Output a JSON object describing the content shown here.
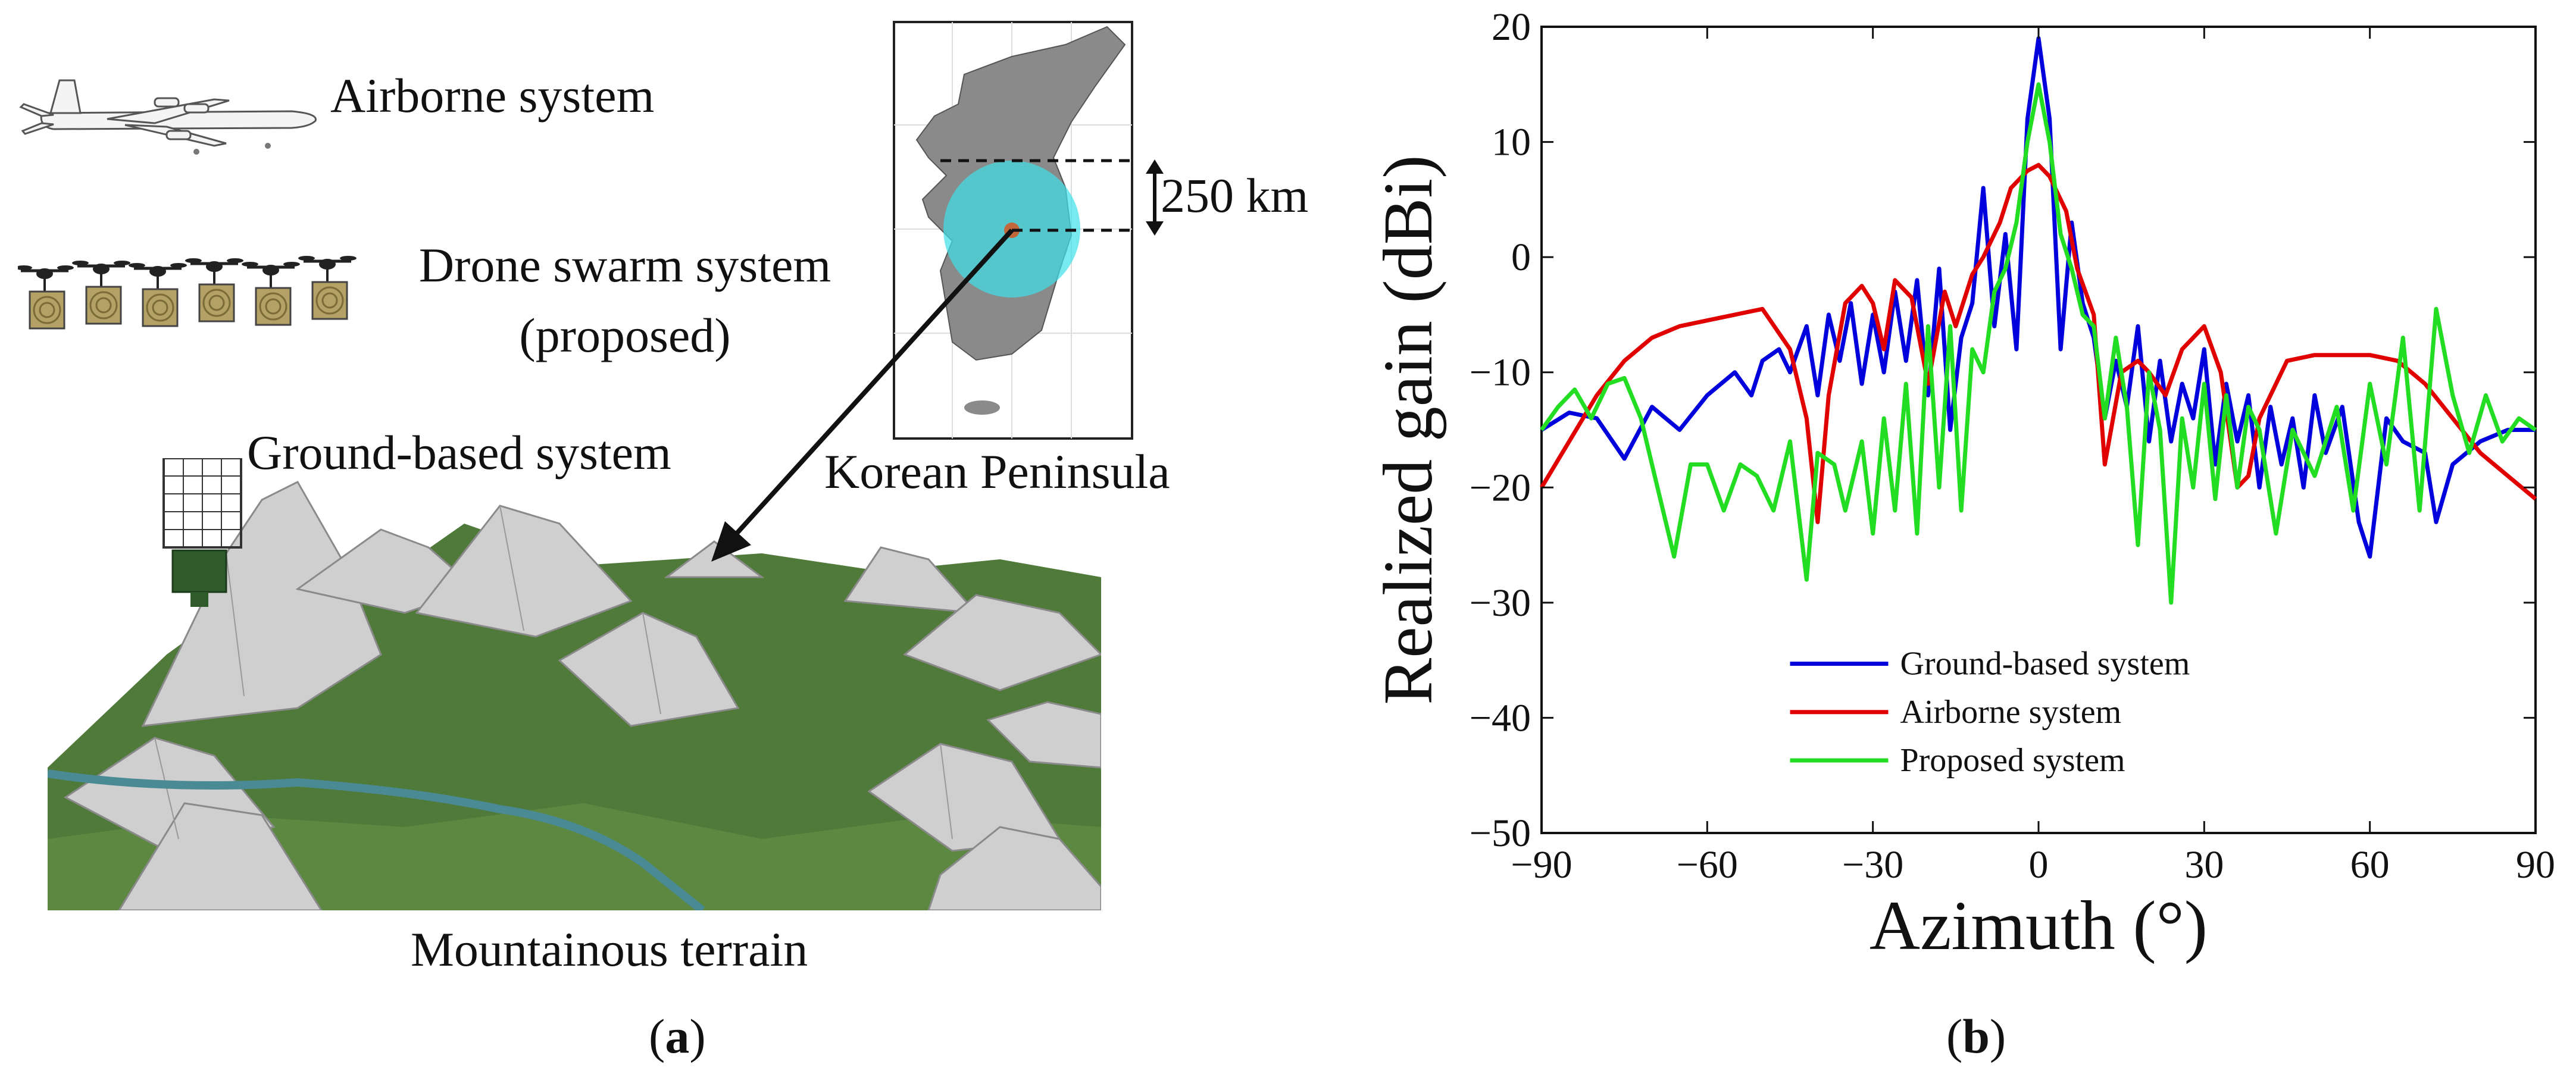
{
  "panel_a": {
    "labels": {
      "airborne": "Airborne system",
      "drone_line1": "Drone swarm system",
      "drone_line2": "(proposed)",
      "ground": "Ground-based system",
      "korea": "Korean Peninsula",
      "distance": "250 km",
      "terrain": "Mountainous terrain"
    },
    "caption": {
      "open": "(",
      "letter": "a",
      "close": ")"
    },
    "colors": {
      "grass": "#4f7a3a",
      "rock": "#c9c9c9",
      "coverage": "#3fe0e8",
      "center_dot": "#c2673a",
      "drone_panel": "#b3a165"
    }
  },
  "panel_b": {
    "caption": {
      "open": "(",
      "letter": "b",
      "close": ")"
    },
    "chart_data": {
      "type": "line",
      "xlabel": "Azimuth (°)",
      "ylabel": "Realized gain (dBi)",
      "xlim": [
        -90,
        90
      ],
      "ylim": [
        -50,
        20
      ],
      "xticks": [
        -90,
        -60,
        -30,
        0,
        30,
        60,
        90
      ],
      "yticks": [
        -50,
        -40,
        -30,
        -20,
        -10,
        0,
        10,
        20
      ],
      "xtick_labels": [
        "−90",
        "−60",
        "−30",
        "0",
        "30",
        "60",
        "90"
      ],
      "ytick_labels": [
        "−50",
        "−40",
        "−30",
        "−20",
        "−10",
        "0",
        "10",
        "20"
      ],
      "grid": false,
      "legend_placement": "lower-center",
      "series": [
        {
          "name": "Ground-based system",
          "color": "#0000dd",
          "x": [
            -90,
            -85,
            -80,
            -75,
            -70,
            -65,
            -60,
            -55,
            -52,
            -50,
            -47,
            -45,
            -42,
            -40,
            -38,
            -36,
            -34,
            -32,
            -30,
            -28,
            -26,
            -24,
            -22,
            -20,
            -18,
            -16,
            -14,
            -12,
            -10,
            -8,
            -6,
            -4,
            -2,
            0,
            2,
            4,
            6,
            8,
            10,
            12,
            14,
            16,
            18,
            20,
            22,
            24,
            26,
            28,
            30,
            32,
            34,
            36,
            38,
            40,
            42,
            44,
            46,
            48,
            50,
            52,
            55,
            58,
            60,
            63,
            66,
            70,
            72,
            75,
            80,
            85,
            90
          ],
          "y": [
            -15,
            -13.5,
            -14,
            -17.5,
            -13,
            -15,
            -12,
            -10,
            -12,
            -9,
            -8,
            -10,
            -6,
            -12,
            -5,
            -9,
            -4,
            -11,
            -5,
            -10,
            -3,
            -9,
            -2,
            -12,
            -1,
            -15,
            -7,
            -4,
            6,
            -6,
            2,
            -8,
            12,
            19,
            12,
            -8,
            3,
            -4,
            -7,
            -14,
            -9,
            -13,
            -6,
            -16,
            -9,
            -16,
            -11,
            -14,
            -8,
            -18,
            -11,
            -16,
            -12,
            -20,
            -13,
            -18,
            -14,
            -20,
            -12,
            -17,
            -13,
            -23,
            -26,
            -14,
            -16,
            -17,
            -23,
            -18,
            -16,
            -15,
            -15
          ]
        },
        {
          "name": "Airborne system",
          "color": "#e00000",
          "x": [
            -90,
            -85,
            -80,
            -75,
            -70,
            -65,
            -60,
            -55,
            -50,
            -45,
            -42,
            -40,
            -38,
            -35,
            -32,
            -30,
            -28,
            -26,
            -23,
            -20,
            -17,
            -15,
            -12,
            -10,
            -7,
            -5,
            -2,
            0,
            2,
            5,
            7,
            10,
            12,
            15,
            18,
            20,
            23,
            26,
            30,
            33,
            36,
            38,
            40,
            45,
            50,
            55,
            60,
            65,
            70,
            75,
            80,
            85,
            90
          ],
          "y": [
            -20,
            -16,
            -12,
            -9,
            -7,
            -6,
            -5.5,
            -5,
            -4.5,
            -8,
            -14,
            -23,
            -12,
            -4,
            -2.5,
            -4,
            -8,
            -2,
            -3.5,
            -11,
            -3,
            -6,
            -1.5,
            0,
            3,
            6,
            7.5,
            8,
            7,
            4,
            -1,
            -5,
            -18,
            -10,
            -9,
            -10,
            -12,
            -8,
            -6,
            -10,
            -20,
            -19,
            -14,
            -9,
            -8.5,
            -8.5,
            -8.5,
            -9,
            -11,
            -14,
            -17,
            -19,
            -21
          ]
        },
        {
          "name": "Proposed system",
          "color": "#22dd22",
          "x": [
            -90,
            -87,
            -84,
            -81,
            -78,
            -75,
            -72,
            -69,
            -66,
            -63,
            -60,
            -57,
            -54,
            -51,
            -48,
            -45,
            -42,
            -40,
            -37,
            -35,
            -32,
            -30,
            -28,
            -26,
            -24,
            -22,
            -20,
            -18,
            -16,
            -14,
            -12,
            -10,
            -8,
            -6,
            -4,
            -2,
            0,
            2,
            4,
            6,
            8,
            10,
            12,
            14,
            16,
            18,
            20,
            22,
            24,
            26,
            28,
            30,
            32,
            34,
            36,
            38,
            40,
            43,
            46,
            50,
            54,
            57,
            60,
            63,
            66,
            69,
            72,
            75,
            78,
            81,
            84,
            87,
            90
          ],
          "y": [
            -15,
            -13,
            -11.5,
            -14,
            -11,
            -10.5,
            -14,
            -20,
            -26,
            -18,
            -18,
            -22,
            -18,
            -19,
            -22,
            -16,
            -28,
            -17,
            -18,
            -22,
            -16,
            -24,
            -14,
            -22,
            -11,
            -24,
            -6,
            -20,
            -6,
            -22,
            -8,
            -10,
            -3,
            -1,
            3,
            10,
            15,
            10,
            2,
            -1,
            -5,
            -6,
            -14,
            -7,
            -13,
            -25,
            -10,
            -15,
            -30,
            -14,
            -20,
            -11,
            -21,
            -12,
            -20,
            -13,
            -15,
            -24,
            -15,
            -19,
            -13,
            -22,
            -11,
            -18,
            -7,
            -22,
            -4.5,
            -12,
            -17,
            -12,
            -16,
            -14,
            -15
          ]
        }
      ]
    }
  }
}
